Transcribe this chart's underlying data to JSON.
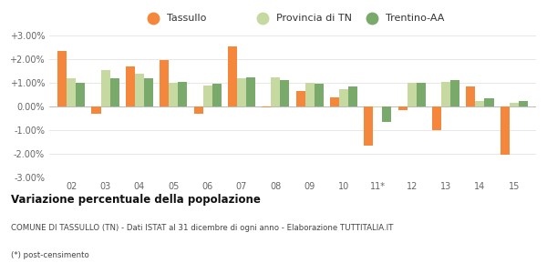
{
  "years": [
    "02",
    "03",
    "04",
    "05",
    "06",
    "07",
    "08",
    "09",
    "10",
    "11*",
    "12",
    "13",
    "14",
    "15"
  ],
  "tassullo": [
    2.35,
    -0.3,
    1.7,
    1.95,
    -0.3,
    2.55,
    -0.05,
    0.65,
    0.4,
    -1.65,
    -0.15,
    -1.0,
    0.85,
    -2.05
  ],
  "provincia_tn": [
    1.2,
    1.55,
    1.4,
    1.0,
    0.9,
    1.2,
    1.25,
    1.0,
    0.75,
    -0.05,
    1.0,
    1.05,
    0.25,
    0.15
  ],
  "trentino_aa": [
    1.0,
    1.2,
    1.2,
    1.05,
    0.95,
    1.25,
    1.1,
    0.95,
    0.85,
    -0.65,
    1.0,
    1.1,
    0.35,
    0.25
  ],
  "color_tassullo": "#f4873b",
  "color_provincia": "#c5d9a0",
  "color_trentino": "#7aaa6b",
  "title_bold": "Variazione percentuale della popolazione",
  "subtitle": "COMUNE DI TASSULLO (TN) - Dati ISTAT al 31 dicembre di ogni anno - Elaborazione TUTTITALIA.IT",
  "footnote": "(*) post-censimento",
  "ylim": [
    -3.0,
    3.0
  ],
  "yticks": [
    -3.0,
    -2.0,
    -1.0,
    0.0,
    1.0,
    2.0,
    3.0
  ],
  "ytick_labels": [
    "-3.00%",
    "-2.00%",
    "-1.00%",
    "0.00%",
    "+1.00%",
    "+2.00%",
    "+3.00%"
  ],
  "legend_labels": [
    "Tassullo",
    "Provincia di TN",
    "Trentino-AA"
  ],
  "bar_width": 0.27
}
